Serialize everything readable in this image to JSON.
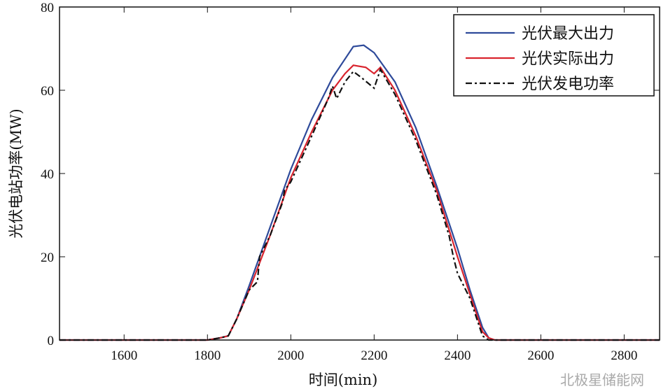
{
  "chart_data": {
    "type": "line",
    "title": "",
    "xlabel": "时间(min)",
    "ylabel": "光伏电站功率(MW)",
    "xlim": [
      1445,
      2885
    ],
    "ylim": [
      0,
      80
    ],
    "xticks": [
      1600,
      1800,
      2000,
      2200,
      2400,
      2600,
      2800
    ],
    "yticks": [
      0,
      20,
      40,
      60,
      80
    ],
    "grid": false,
    "legend_position": "top-right",
    "series": [
      {
        "name": "光伏最大出力",
        "color": "#2e4a9a",
        "style": "solid",
        "x": [
          1445,
          1800,
          1830,
          1850,
          1870,
          1900,
          1950,
          2000,
          2050,
          2100,
          2150,
          2175,
          2200,
          2250,
          2300,
          2350,
          2400,
          2430,
          2460,
          2475,
          2490,
          2885
        ],
        "y": [
          0,
          0,
          0.5,
          1,
          5,
          13,
          27,
          41,
          53,
          63,
          70.5,
          70.8,
          69,
          62,
          51,
          37,
          22,
          12,
          3,
          0.5,
          0,
          0
        ]
      },
      {
        "name": "光伏实际出力",
        "color": "#d9242e",
        "style": "solid",
        "x": [
          1445,
          1800,
          1830,
          1850,
          1870,
          1900,
          1950,
          2000,
          2050,
          2100,
          2130,
          2150,
          2180,
          2200,
          2215,
          2250,
          2300,
          2350,
          2400,
          2430,
          2460,
          2475,
          2490,
          2885
        ],
        "y": [
          0,
          0,
          0.5,
          1,
          5,
          12,
          25,
          39,
          50,
          60,
          64,
          66,
          65.5,
          64,
          65.5,
          60,
          49,
          36,
          20,
          11,
          2,
          0.5,
          0,
          0
        ]
      },
      {
        "name": "光伏发电功率",
        "color": "#111111",
        "style": "dashdot",
        "x": [
          1445,
          1800,
          1830,
          1850,
          1870,
          1900,
          1920,
          1925,
          1950,
          1980,
          1985,
          2000,
          2050,
          2090,
          2100,
          2110,
          2130,
          2150,
          2170,
          2200,
          2215,
          2250,
          2300,
          2350,
          2380,
          2390,
          2400,
          2430,
          2460,
          2475,
          2885
        ],
        "y": [
          0,
          0,
          0.5,
          1,
          5,
          12,
          14,
          20,
          25,
          33,
          36,
          38,
          49,
          58,
          61,
          58,
          62,
          64.5,
          63,
          60.5,
          65,
          59,
          48,
          35,
          25,
          20,
          16,
          10,
          1,
          0,
          0
        ]
      }
    ]
  },
  "watermark": "北极星储能网"
}
